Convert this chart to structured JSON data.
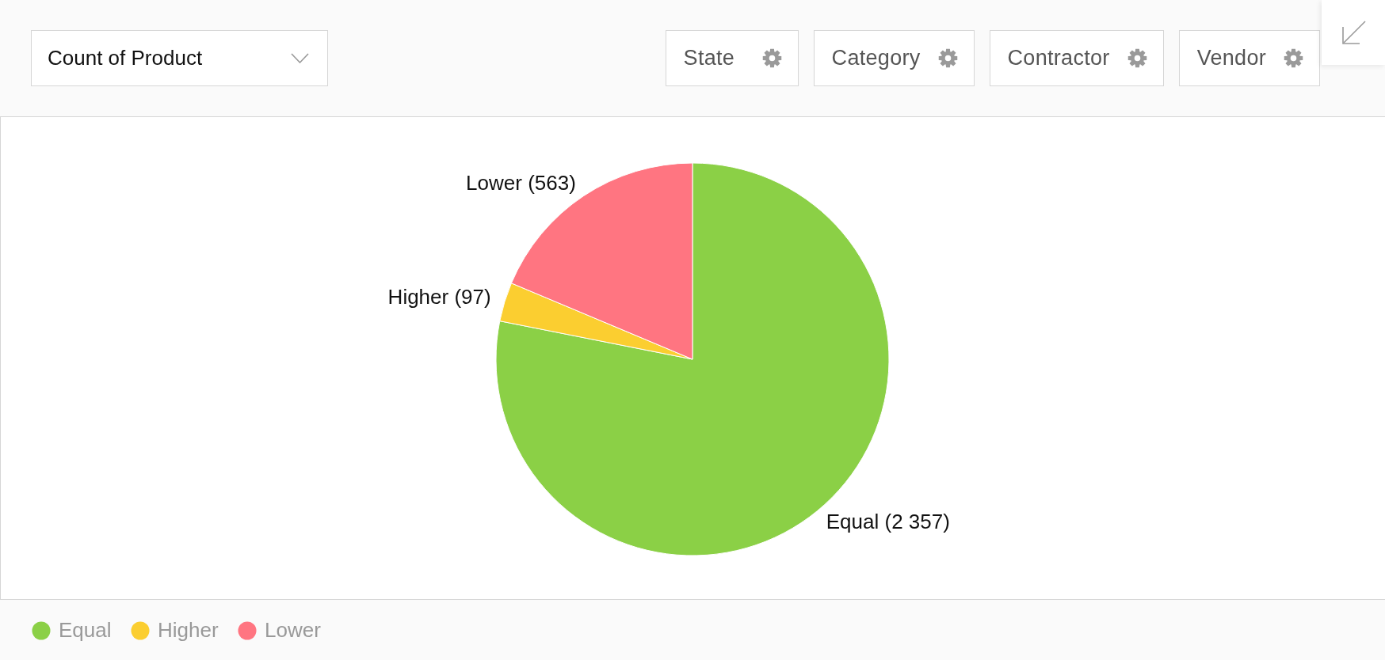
{
  "chart_data": {
    "type": "pie",
    "title": "Count of Product",
    "annotations": [
      "State",
      "Category",
      "Contractor",
      "Vendor"
    ],
    "categories": [
      "Equal",
      "Higher",
      "Lower"
    ],
    "values": [
      2357,
      97,
      563
    ],
    "colors": [
      "#8bd046",
      "#fbce30",
      "#ff7581"
    ],
    "value_labels": [
      "Equal (2 357)",
      "Higher (97)",
      "Lower (563)"
    ],
    "legend": "bottom left"
  }
}
